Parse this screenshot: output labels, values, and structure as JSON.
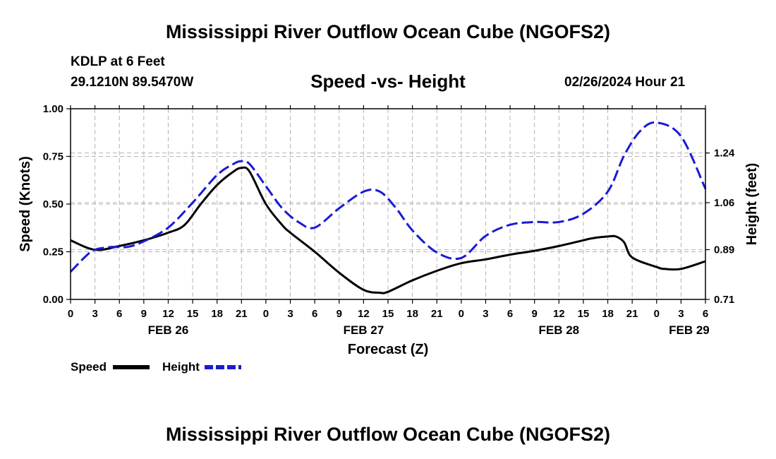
{
  "page": {
    "title_top": "Mississippi River Outflow Ocean Cube (NGOFS2)",
    "title_bottom": "Mississippi River Outflow Ocean Cube (NGOFS2)",
    "station": "KDLP at 6 Feet",
    "coords": "29.1210N  89.5470W",
    "chart_title": "Speed -vs- Height",
    "datetime": "02/26/2024 Hour 21"
  },
  "legend": {
    "speed_label": "Speed",
    "height_label": "Height"
  },
  "chart_data": {
    "type": "line",
    "title": "Speed -vs- Height",
    "xlabel": "Forecast (Z)",
    "ylabel": "Speed (Knots)",
    "y2label": "Height (feet)",
    "ylim": [
      0,
      1.0
    ],
    "y2lim": [
      0.71,
      1.4
    ],
    "xlim": [
      0,
      78
    ],
    "grid": true,
    "colors": {
      "speed": "#000000",
      "height": "#1a1ad6",
      "grid": "#b4b4b4"
    },
    "x_ticks": [
      {
        "x": 0,
        "label": "0"
      },
      {
        "x": 3,
        "label": "3"
      },
      {
        "x": 6,
        "label": "6"
      },
      {
        "x": 9,
        "label": "9"
      },
      {
        "x": 12,
        "label": "12"
      },
      {
        "x": 15,
        "label": "15"
      },
      {
        "x": 18,
        "label": "18"
      },
      {
        "x": 21,
        "label": "21"
      },
      {
        "x": 24,
        "label": "0"
      },
      {
        "x": 27,
        "label": "3"
      },
      {
        "x": 30,
        "label": "6"
      },
      {
        "x": 33,
        "label": "9"
      },
      {
        "x": 36,
        "label": "12"
      },
      {
        "x": 39,
        "label": "15"
      },
      {
        "x": 42,
        "label": "18"
      },
      {
        "x": 45,
        "label": "21"
      },
      {
        "x": 48,
        "label": "0"
      },
      {
        "x": 51,
        "label": "3"
      },
      {
        "x": 54,
        "label": "6"
      },
      {
        "x": 57,
        "label": "9"
      },
      {
        "x": 60,
        "label": "12"
      },
      {
        "x": 63,
        "label": "15"
      },
      {
        "x": 66,
        "label": "18"
      },
      {
        "x": 69,
        "label": "21"
      },
      {
        "x": 72,
        "label": "0"
      },
      {
        "x": 75,
        "label": "3"
      },
      {
        "x": 78,
        "label": "6"
      }
    ],
    "date_labels": [
      {
        "x": 12,
        "label": "FEB 26"
      },
      {
        "x": 36,
        "label": "FEB 27"
      },
      {
        "x": 60,
        "label": "FEB 28"
      },
      {
        "x": 76,
        "label": "FEB 29"
      }
    ],
    "y_ticks": [
      {
        "v": 0.0,
        "label": "0.00"
      },
      {
        "v": 0.25,
        "label": "0.25"
      },
      {
        "v": 0.5,
        "label": "0.50"
      },
      {
        "v": 0.75,
        "label": "0.75"
      },
      {
        "v": 1.0,
        "label": "1.00"
      }
    ],
    "y2_ticks": [
      {
        "v": 0.71,
        "label": "0.71"
      },
      {
        "v": 0.89,
        "label": "0.89"
      },
      {
        "v": 1.06,
        "label": "1.06"
      },
      {
        "v": 1.24,
        "label": "1.24"
      }
    ],
    "series": [
      {
        "name": "Speed",
        "axis": "left",
        "style": "solid",
        "x": [
          0,
          3,
          6,
          9,
          12,
          14,
          16,
          18,
          20,
          21,
          22,
          24,
          26,
          27,
          30,
          33,
          36,
          38,
          39,
          42,
          45,
          48,
          51,
          54,
          57,
          60,
          63,
          64,
          66,
          67,
          68,
          69,
          72,
          73,
          75,
          78
        ],
        "values": [
          0.31,
          0.26,
          0.28,
          0.31,
          0.35,
          0.39,
          0.5,
          0.6,
          0.67,
          0.69,
          0.67,
          0.5,
          0.39,
          0.35,
          0.25,
          0.14,
          0.05,
          0.035,
          0.04,
          0.1,
          0.15,
          0.19,
          0.21,
          0.235,
          0.255,
          0.28,
          0.31,
          0.32,
          0.33,
          0.33,
          0.3,
          0.22,
          0.17,
          0.16,
          0.16,
          0.2
        ]
      },
      {
        "name": "Height",
        "axis": "right",
        "style": "dashed",
        "x": [
          0,
          2,
          3,
          5,
          7,
          9,
          12,
          15,
          18,
          20,
          21,
          22,
          24,
          26,
          28,
          30,
          33,
          36,
          38,
          40,
          42,
          45,
          48,
          51,
          54,
          57,
          60,
          63,
          66,
          68,
          70,
          72,
          75,
          78
        ],
        "values": [
          0.81,
          0.87,
          0.89,
          0.9,
          0.9,
          0.92,
          0.97,
          1.06,
          1.16,
          1.2,
          1.21,
          1.2,
          1.12,
          1.04,
          0.99,
          0.97,
          1.04,
          1.1,
          1.1,
          1.04,
          0.96,
          0.88,
          0.86,
          0.94,
          0.98,
          0.99,
          0.99,
          1.02,
          1.1,
          1.23,
          1.32,
          1.35,
          1.3,
          1.11
        ]
      }
    ]
  }
}
